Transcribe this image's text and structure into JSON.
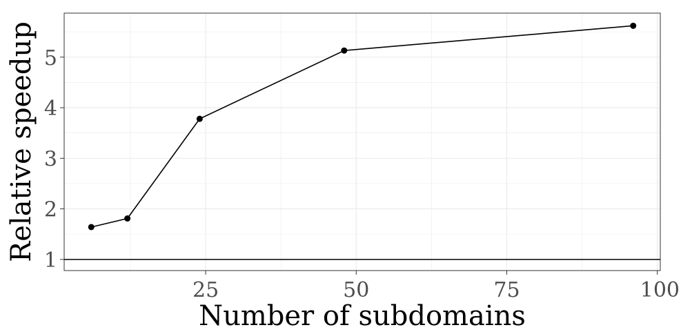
{
  "chart_data": {
    "type": "line",
    "title": "",
    "xlabel": "Number of subdomains",
    "ylabel": "Relative speedup",
    "xlim": [
      1.5,
      100.5
    ],
    "ylim": [
      0.78,
      5.87
    ],
    "x_ticks": [
      25,
      50,
      75,
      100
    ],
    "x_tick_labels": [
      "25",
      "50",
      "75",
      "100"
    ],
    "y_ticks": [
      1,
      2,
      3,
      4,
      5
    ],
    "y_tick_labels": [
      "1",
      "2",
      "3",
      "4",
      "5"
    ],
    "grid": true,
    "reference_line": {
      "y": 1
    },
    "series": [
      {
        "x": [
          6,
          12,
          24,
          48,
          96
        ],
        "y": [
          1.64,
          1.81,
          3.78,
          5.13,
          5.62
        ]
      }
    ],
    "colors": {
      "line": "#000000",
      "point": "#000000",
      "grid": "#ebebeb",
      "panel_border": "#333333"
    }
  }
}
